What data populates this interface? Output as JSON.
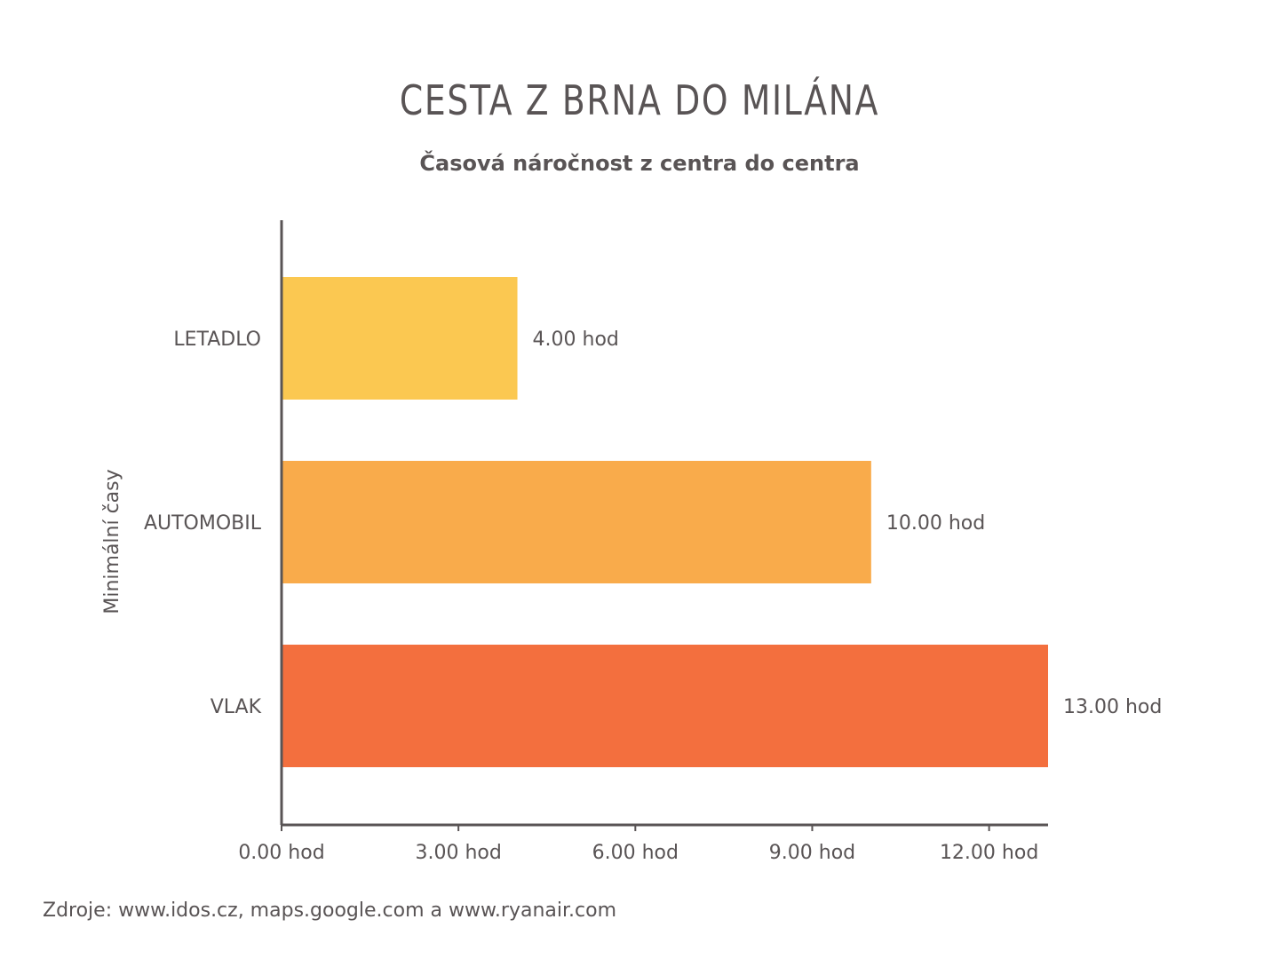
{
  "title": "CESTA Z BRNA DO MILÁNA",
  "subtitle": "Časová náročnost z centra do centra",
  "source": "Zdroje: www.idos.cz, maps.google.com a www.ryanair.com",
  "chart_data": {
    "type": "bar",
    "orientation": "horizontal",
    "title": "CESTA Z BRNA DO MILÁNA",
    "subtitle": "Časová náročnost z centra do centra",
    "ylabel": "Minimální časy",
    "xlabel": "",
    "categories": [
      "LETADLO",
      "AUTOMOBIL",
      "VLAK"
    ],
    "values": [
      4,
      10,
      13
    ],
    "value_labels": [
      "4.00 hod",
      "10.00 hod",
      "13.00 hod"
    ],
    "colors": [
      "#FBC851",
      "#F9AB4B",
      "#F36F3E"
    ],
    "xlim": [
      0,
      13
    ],
    "xticks": [
      0,
      3,
      6,
      9,
      12
    ],
    "xtick_labels": [
      "0.00 hod",
      "3.00 hod",
      "6.00 hod",
      "9.00 hod",
      "12.00 hod"
    ],
    "grid": false,
    "legend": "none",
    "axis_color": "#595455",
    "text_color": "#595455"
  }
}
